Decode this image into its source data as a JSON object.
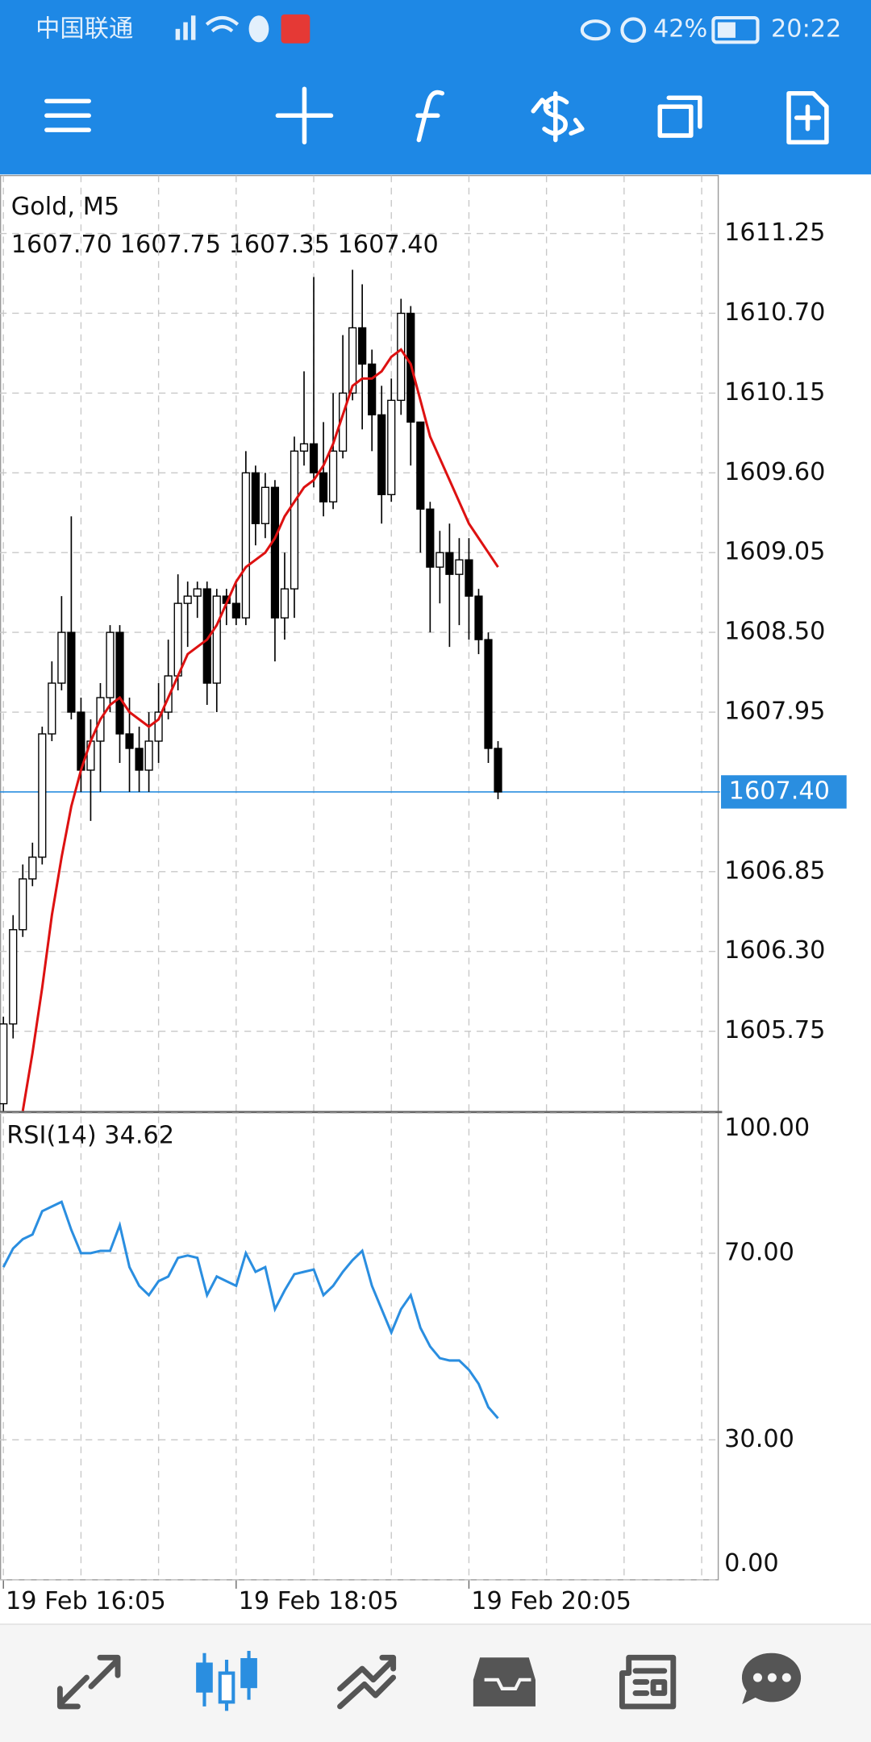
{
  "status_bar": {
    "carrier": "中国联通",
    "battery": "42%",
    "time": "20:22"
  },
  "chart_data": [
    {
      "type": "candlestick",
      "title": "Gold, M5",
      "ohlc_text": "1607.70 1607.75 1607.35 1607.40",
      "up_color": "#ffffff",
      "down_color": "#000000",
      "grid": true,
      "xlim": [
        -0.35,
        73.65
      ],
      "xticks": [
        {
          "value": 0,
          "label": "19 Feb 16:05"
        },
        {
          "value": 24,
          "label": "19 Feb 18:05"
        },
        {
          "value": 48,
          "label": "19 Feb 20:05"
        }
      ],
      "xgrid": [
        8,
        16,
        32,
        40,
        56,
        64,
        72
      ],
      "ylim": [
        1605.2,
        1611.65
      ],
      "yticks": [
        {
          "value": 1611.25,
          "label": "1611.25"
        },
        {
          "value": 1610.7,
          "label": "1610.70"
        },
        {
          "value": 1610.15,
          "label": "1610.15"
        },
        {
          "value": 1609.6,
          "label": "1609.60"
        },
        {
          "value": 1609.05,
          "label": "1609.05"
        },
        {
          "value": 1608.5,
          "label": "1608.50"
        },
        {
          "value": 1607.95,
          "label": "1607.95"
        },
        {
          "value": 1606.85,
          "label": "1606.85"
        },
        {
          "value": 1606.3,
          "label": "1606.30"
        },
        {
          "value": 1605.75,
          "label": "1605.75"
        }
      ],
      "current_price": {
        "value": 1607.4,
        "label": "1607.40"
      },
      "open": [
        1605.25,
        1605.8,
        1606.45,
        1606.8,
        1606.95,
        1607.8,
        1608.15,
        1608.5,
        1607.95,
        1607.55,
        1607.75,
        1608.05,
        1608.5,
        1607.8,
        1607.7,
        1607.55,
        1607.75,
        1607.95,
        1608.2,
        1608.7,
        1608.75,
        1608.8,
        1608.15,
        1608.75,
        1608.7,
        1608.6,
        1609.6,
        1609.25,
        1609.5,
        1608.6,
        1608.8,
        1609.75,
        1609.8,
        1609.6,
        1609.4,
        1609.75,
        1610.15,
        1610.6,
        1610.35,
        1610.0,
        1609.45,
        1610.1,
        1610.7,
        1609.95,
        1609.35,
        1608.95,
        1609.05,
        1608.9,
        1609.0,
        1608.75,
        1608.45,
        1607.7
      ],
      "high": [
        1605.85,
        1606.55,
        1606.9,
        1607.05,
        1607.85,
        1608.3,
        1608.75,
        1609.3,
        1608.05,
        1607.9,
        1608.15,
        1608.55,
        1608.55,
        1608.05,
        1607.85,
        1607.95,
        1608.15,
        1608.45,
        1608.9,
        1608.85,
        1608.85,
        1608.85,
        1608.8,
        1608.8,
        1608.85,
        1609.75,
        1609.65,
        1609.6,
        1609.55,
        1609.05,
        1609.85,
        1610.3,
        1610.95,
        1609.95,
        1610.15,
        1610.55,
        1611.0,
        1610.9,
        1610.45,
        1610.2,
        1610.25,
        1610.8,
        1610.75,
        1609.95,
        1609.4,
        1609.2,
        1609.25,
        1609.15,
        1609.15,
        1608.8,
        1608.5,
        1607.75
      ],
      "low": [
        1605.2,
        1605.7,
        1606.4,
        1606.75,
        1606.9,
        1607.75,
        1608.1,
        1607.9,
        1607.4,
        1607.2,
        1607.4,
        1607.95,
        1607.6,
        1607.4,
        1607.4,
        1607.4,
        1607.6,
        1607.9,
        1608.1,
        1608.4,
        1608.6,
        1608.0,
        1607.95,
        1608.55,
        1608.55,
        1608.55,
        1609.1,
        1609.15,
        1608.3,
        1608.45,
        1608.6,
        1609.65,
        1609.5,
        1609.3,
        1609.35,
        1609.7,
        1610.1,
        1609.9,
        1609.75,
        1609.25,
        1609.4,
        1610.0,
        1609.65,
        1609.05,
        1608.5,
        1608.7,
        1608.4,
        1608.55,
        1608.45,
        1608.35,
        1607.6,
        1607.35
      ],
      "close": [
        1605.8,
        1606.45,
        1606.8,
        1606.95,
        1607.8,
        1608.15,
        1608.5,
        1607.95,
        1607.55,
        1607.75,
        1608.05,
        1608.5,
        1607.8,
        1607.7,
        1607.55,
        1607.75,
        1607.95,
        1608.2,
        1608.7,
        1608.75,
        1608.8,
        1608.15,
        1608.75,
        1608.7,
        1608.6,
        1609.6,
        1609.25,
        1609.5,
        1608.6,
        1608.8,
        1609.75,
        1609.8,
        1609.6,
        1609.4,
        1609.75,
        1610.15,
        1610.6,
        1610.35,
        1610.0,
        1609.45,
        1610.1,
        1610.7,
        1609.95,
        1609.35,
        1608.95,
        1609.05,
        1608.9,
        1609.0,
        1608.75,
        1608.45,
        1607.7,
        1607.4
      ],
      "series": [
        {
          "color": "#dd1111",
          "values": [
            null,
            null,
            1605.2,
            1605.6,
            1606.05,
            1606.55,
            1606.95,
            1607.3,
            1607.55,
            1607.75,
            1607.9,
            1608.0,
            1608.05,
            1607.95,
            1607.9,
            1607.85,
            1607.9,
            1608.05,
            1608.2,
            1608.35,
            1608.4,
            1608.45,
            1608.55,
            1608.7,
            1608.85,
            1608.95,
            1609.0,
            1609.05,
            1609.15,
            1609.3,
            1609.4,
            1609.5,
            1609.55,
            1609.65,
            1609.8,
            1610.0,
            1610.2,
            1610.25,
            1610.25,
            1610.3,
            1610.4,
            1610.45,
            1610.35,
            1610.1,
            1609.85,
            1609.7,
            1609.55,
            1609.4,
            1609.25,
            1609.15,
            1609.05,
            1608.95
          ]
        }
      ]
    },
    {
      "type": "line",
      "title": "RSI(14) 34.62",
      "color": "#2a8ee0",
      "grid": true,
      "ylim": [
        0,
        100
      ],
      "yticks": [
        {
          "value": 100,
          "label": "100.00"
        },
        {
          "value": 70,
          "label": "70.00"
        },
        {
          "value": 30,
          "label": "30.00"
        },
        {
          "value": 0,
          "label": "0.00"
        }
      ],
      "values": [
        67,
        71,
        73,
        74,
        79,
        80,
        81,
        75,
        70,
        70,
        70.5,
        70.5,
        76,
        67,
        63,
        61,
        64,
        65,
        69,
        69.5,
        69,
        61,
        65,
        64,
        63,
        70,
        66,
        67,
        58,
        62,
        65.5,
        66,
        66.5,
        61,
        63,
        66,
        68.5,
        70.5,
        63,
        58,
        53,
        58,
        61,
        54,
        50,
        47.5,
        47,
        47,
        45,
        42,
        37,
        34.62
      ]
    }
  ]
}
